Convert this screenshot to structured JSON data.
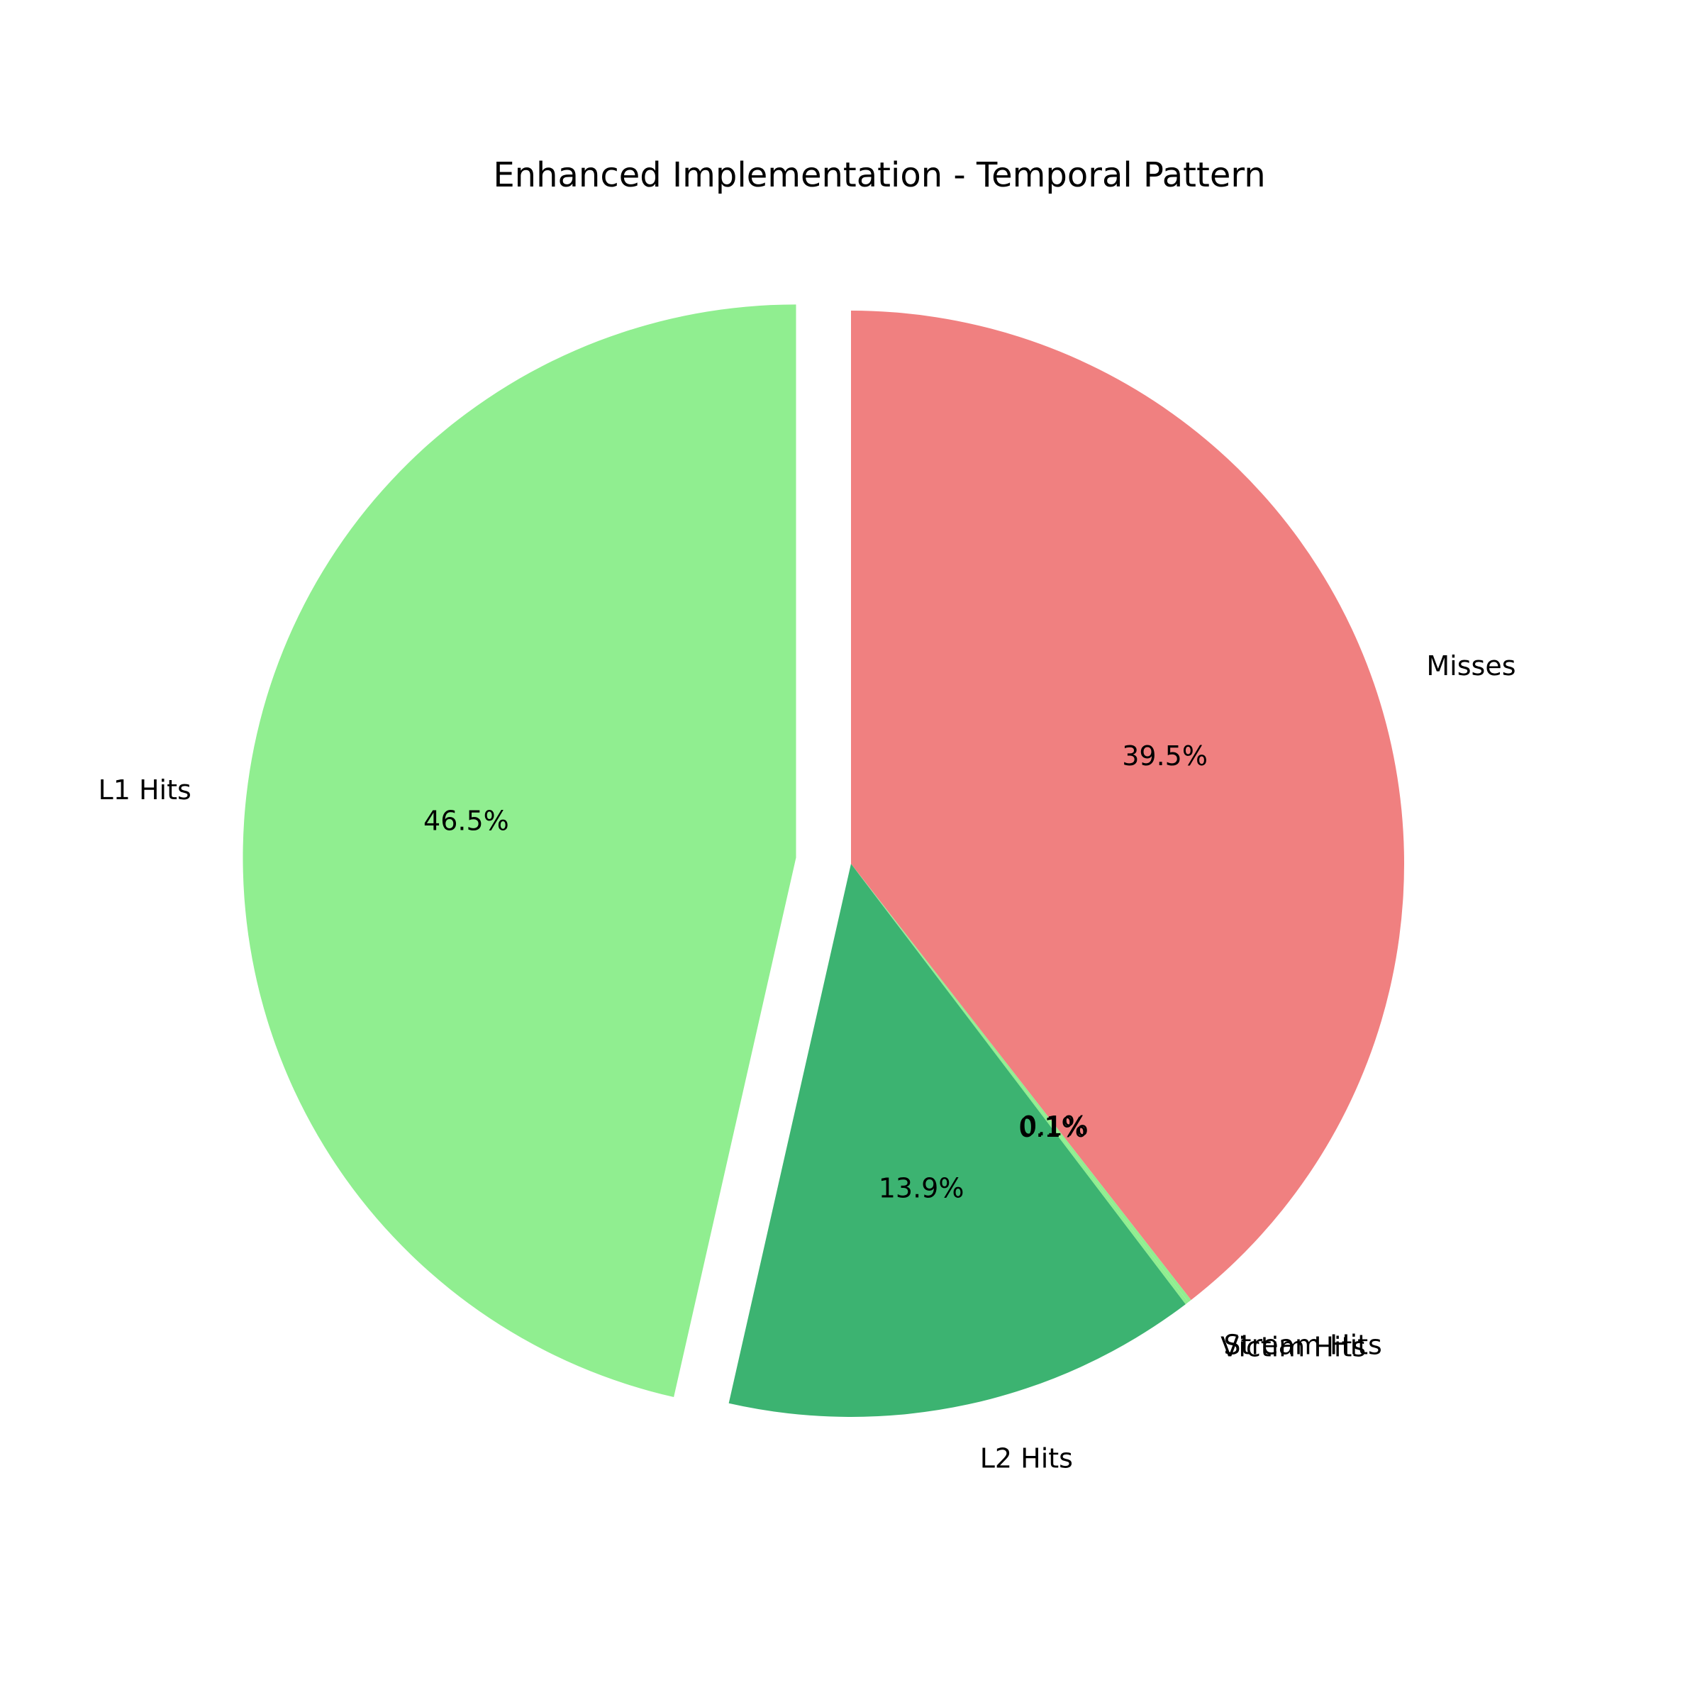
{
  "chart_data": {
    "type": "pie",
    "title": "Enhanced Implementation - Temporal Pattern",
    "slices": [
      {
        "label": "Misses",
        "percent": 39.5,
        "pct_label": "39.5%",
        "color": "#f08080",
        "explode": false
      },
      {
        "label": "Stream Hits",
        "percent": 0.1,
        "pct_label": "0.1%",
        "color": "#90ee90",
        "explode": false
      },
      {
        "label": "Victim Hits",
        "percent": 0.1,
        "pct_label": "0.1%",
        "color": "#90ee90",
        "explode": false
      },
      {
        "label": "L2 Hits",
        "percent": 13.9,
        "pct_label": "13.9%",
        "color": "#3cb371",
        "explode": false
      },
      {
        "label": "L1 Hits",
        "percent": 46.5,
        "pct_label": "46.5%",
        "color": "#90ee90",
        "explode": true
      }
    ],
    "start_angle_deg": 90,
    "direction": "clockwise"
  }
}
